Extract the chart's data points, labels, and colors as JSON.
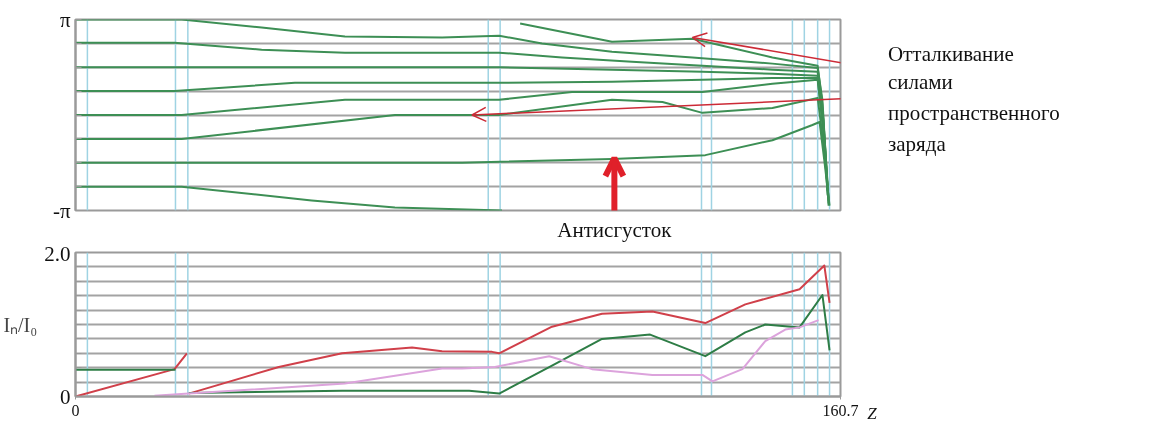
{
  "chart_data": [
    {
      "type": "line",
      "xlim": [
        0,
        160.7
      ],
      "ylim": [
        -3.1416,
        3.1416
      ],
      "yticks": [
        {
          "value": -3.1416,
          "label": "-π"
        },
        {
          "value": -2.3562,
          "label": null
        },
        {
          "value": -1.5708,
          "label": null
        },
        {
          "value": -0.7854,
          "label": null
        },
        {
          "value": 0,
          "label": null
        },
        {
          "value": 0.7854,
          "label": null
        },
        {
          "value": 1.5708,
          "label": null
        },
        {
          "value": 2.3562,
          "label": null
        },
        {
          "value": 3.1416,
          "label": "π"
        }
      ],
      "tick_labels": "y",
      "grid": "y",
      "series": [
        {
          "color": "#3d8f55",
          "x": [
            0,
            22.3,
            39.1,
            56.6,
            77.0,
            89.0,
            98.0,
            112.7,
            129.6,
            146.4,
            155.9,
            156.9,
            158.0
          ],
          "values": [
            3.14,
            3.14,
            2.88,
            2.58,
            2.55,
            2.61,
            2.35,
            2.08,
            1.89,
            1.69,
            1.55,
            0.5,
            -2.48
          ]
        },
        {
          "color": "#3d8f55",
          "x": [
            0,
            20.8,
            39.1,
            56.6,
            89.0,
            102.2,
            116.9,
            131.7,
            146.4,
            155.9,
            156.9,
            158.2
          ],
          "values": [
            2.38,
            2.38,
            2.15,
            2.05,
            2.05,
            1.89,
            1.75,
            1.62,
            1.49,
            1.42,
            0.17,
            -2.81
          ]
        },
        {
          "color": "#3d8f55",
          "x": [
            0,
            89.0,
            112.7,
            131.7,
            146.4,
            155.9,
            157.1,
            158.2
          ],
          "values": [
            1.57,
            1.57,
            1.49,
            1.42,
            1.36,
            1.29,
            -0.16,
            -2.98
          ]
        },
        {
          "color": "#3d8f55",
          "x": [
            0,
            20.8,
            46.1,
            89.0,
            112.7,
            131.7,
            146.4,
            155.9,
            157.1,
            158.0
          ],
          "values": [
            0.79,
            0.79,
            1.06,
            1.06,
            1.09,
            1.16,
            1.22,
            1.22,
            -0.5,
            -2.65
          ]
        },
        {
          "color": "#3d8f55",
          "x": [
            0,
            22.3,
            56.6,
            89.0,
            104.3,
            131.7,
            146.4,
            155.9,
            157.3,
            158.2
          ],
          "values": [
            0,
            0,
            0.5,
            0.5,
            0.76,
            0.76,
            1.03,
            1.16,
            -0.83,
            -2.91
          ]
        },
        {
          "color": "#3d8f55",
          "x": [
            0,
            22.3,
            67.1,
            89.0,
            112.7,
            123.3,
            131.7,
            146.4,
            155.9,
            157.3,
            158.2
          ],
          "values": [
            -0.79,
            -0.79,
            0,
            0,
            0.5,
            0.43,
            0.07,
            0.23,
            0.56,
            -1.16,
            -2.74
          ]
        },
        {
          "color": "#3d8f55",
          "x": [
            0,
            81.2,
            112.7,
            132.3,
            146.4,
            154.8,
            156.3,
            157.3,
            158.4
          ],
          "values": [
            -1.57,
            -1.57,
            -1.45,
            -1.32,
            -0.83,
            -0.33,
            -0.23,
            -1.49,
            -2.98
          ]
        },
        {
          "color": "#3d8f55",
          "x": [
            0,
            22.3,
            49.6,
            67.1,
            89.6,
            91.5,
            93.4,
            112.7,
            129.6,
            146.4,
            155.9,
            156.9,
            158.0
          ],
          "values": [
            -2.36,
            -2.36,
            -2.81,
            -3.04,
            -3.14,
            null,
            3.01,
            2.41,
            2.51,
            1.89,
            1.62,
            0.33,
            -2.32
          ]
        }
      ],
      "ref_lines": [
        {
          "axis": "x",
          "value": 2.5,
          "color": "#9fd3e3"
        },
        {
          "axis": "x",
          "value": 21.0,
          "color": "#9fd3e3"
        },
        {
          "axis": "x",
          "value": 23.6,
          "color": "#9fd3e3"
        },
        {
          "axis": "x",
          "value": 86.7,
          "color": "#9fd3e3"
        },
        {
          "axis": "x",
          "value": 89.2,
          "color": "#9fd3e3"
        },
        {
          "axis": "x",
          "value": 131.5,
          "color": "#9fd3e3"
        },
        {
          "axis": "x",
          "value": 133.6,
          "color": "#9fd3e3"
        },
        {
          "axis": "x",
          "value": 150.6,
          "color": "#9fd3e3"
        },
        {
          "axis": "x",
          "value": 153.1,
          "color": "#9fd3e3"
        },
        {
          "axis": "x",
          "value": 155.9,
          "color": "#9fd3e3"
        },
        {
          "axis": "x",
          "value": 158.4,
          "color": "#9fd3e3"
        }
      ],
      "annotations": [
        {
          "text": "Отталкивание",
          "x": 129.6,
          "y": 2.55
        },
        {
          "text": "силами пространственного заряда",
          "x": 83.3,
          "y": 0.0
        },
        {
          "text": "Антисгусток",
          "x": 113.2,
          "y": -1.42
        }
      ]
    },
    {
      "type": "line",
      "xlim": [
        0,
        160.7
      ],
      "ylim": [
        0,
        2.0
      ],
      "xticks": [
        0,
        160.7
      ],
      "yticks": [
        0,
        {
          "value": 0.2,
          "label": null
        },
        {
          "value": 0.4,
          "label": null
        },
        {
          "value": 0.6,
          "label": null
        },
        {
          "value": 0.8,
          "label": null
        },
        {
          "value": 1.0,
          "label": null
        },
        {
          "value": 1.2,
          "label": null
        },
        {
          "value": 1.4,
          "label": null
        },
        {
          "value": 1.6,
          "label": null
        },
        {
          "value": 1.8,
          "label": null
        },
        {
          "value": 2.0,
          "label": "2.0"
        }
      ],
      "xlabel": "Z",
      "ylabel": "Iₙ/I₀",
      "grid": "y",
      "series": [
        {
          "color": "#d0404a",
          "x": [
            0,
            20.8,
            23.4,
            23.6,
            23.8,
            42.7,
            56.0,
            70.7,
            77.0,
            87.5,
            89.0,
            100.1,
            110.6,
            121.2,
            132.3,
            140.7,
            152.1,
            157.3,
            158.4
          ],
          "values": [
            0,
            0.38,
            0.6,
            null,
            0.04,
            0.41,
            0.6,
            0.68,
            0.63,
            0.62,
            0.6,
            0.97,
            1.15,
            1.18,
            1.02,
            1.28,
            1.49,
            1.82,
            1.3
          ]
        },
        {
          "color": "#2e7d46",
          "x": [
            0,
            21.0,
            22.0,
            23.8,
            56.0,
            82.7,
            89.0,
            100.1,
            110.6,
            120.7,
            132.3,
            140.7,
            144.9,
            152.1,
            156.9,
            158.4
          ],
          "values": [
            0.37,
            0.37,
            null,
            0.05,
            0.08,
            0.08,
            0.04,
            0.43,
            0.8,
            0.86,
            0.56,
            0.89,
            1.0,
            0.96,
            1.41,
            0.64
          ]
        },
        {
          "color": "#dca3dc",
          "x": [
            16.6,
            23.8,
            56.6,
            77.0,
            81.2,
            88.1,
            99.5,
            108.5,
            121.2,
            131.7,
            133.8,
            140.1,
            144.9,
            149.1,
            152.1,
            156.1
          ],
          "values": [
            0.01,
            0.04,
            0.18,
            0.39,
            0.39,
            0.41,
            0.56,
            0.38,
            0.3,
            0.3,
            0.21,
            0.38,
            0.77,
            0.93,
            0.96,
            1.06
          ]
        }
      ],
      "ref_lines": [
        {
          "axis": "x",
          "value": 2.5,
          "color": "#9fd3e3"
        },
        {
          "axis": "x",
          "value": 21.0,
          "color": "#9fd3e3"
        },
        {
          "axis": "x",
          "value": 23.6,
          "color": "#9fd3e3"
        },
        {
          "axis": "x",
          "value": 86.7,
          "color": "#9fd3e3"
        },
        {
          "axis": "x",
          "value": 89.2,
          "color": "#9fd3e3"
        },
        {
          "axis": "x",
          "value": 131.5,
          "color": "#9fd3e3"
        },
        {
          "axis": "x",
          "value": 133.6,
          "color": "#9fd3e3"
        },
        {
          "axis": "x",
          "value": 150.6,
          "color": "#9fd3e3"
        },
        {
          "axis": "x",
          "value": 153.1,
          "color": "#9fd3e3"
        },
        {
          "axis": "x",
          "value": 155.9,
          "color": "#9fd3e3"
        },
        {
          "axis": "x",
          "value": 158.4,
          "color": "#9fd3e3"
        }
      ]
    }
  ]
}
